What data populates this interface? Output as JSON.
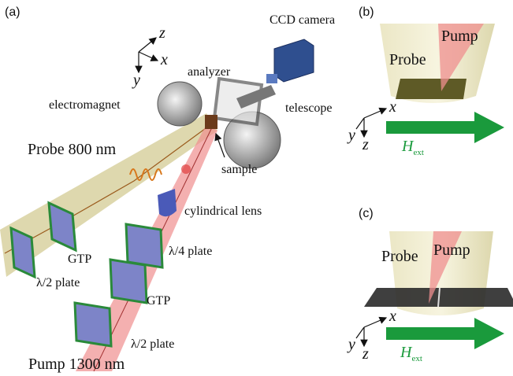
{
  "panels": [
    {
      "label": "(a)",
      "axes": {
        "z": "z",
        "x": "x",
        "y": "y"
      },
      "labels": [
        "CCD camera",
        "analyzer",
        "electromagnet",
        "telescope",
        "Probe 800 nm",
        "sample",
        "cylindrical lens",
        "GTP",
        "λ/4 plate",
        "λ/2 plate",
        "GTP",
        "λ/2 plate",
        "Pump 1300 nm"
      ]
    },
    {
      "label": "(b)",
      "pump": "Pump",
      "probe": "Probe",
      "axes": {
        "x": "x",
        "y": "y",
        "z": "z"
      },
      "field": {
        "symbol": "H",
        "subscript": "ext"
      }
    },
    {
      "label": "(c)",
      "pump": "Pump",
      "probe": "Probe",
      "axes": {
        "x": "x",
        "y": "y",
        "z": "z"
      },
      "field": {
        "symbol": "H",
        "subscript": "ext"
      }
    }
  ]
}
